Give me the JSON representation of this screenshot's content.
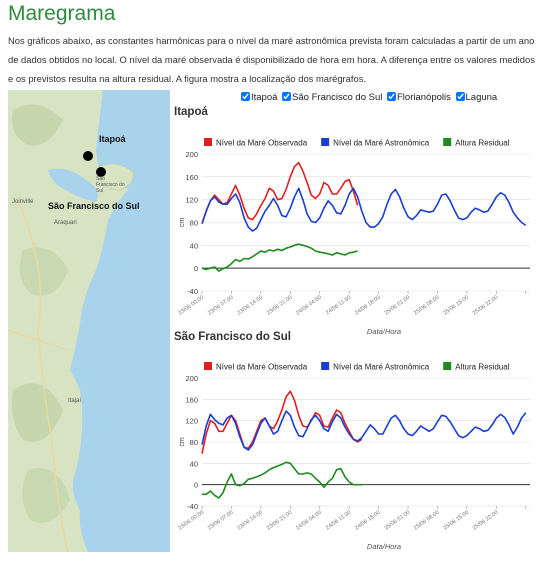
{
  "page": {
    "title": "Maregrama",
    "intro": "Nos gráficos abaixo, as constantes harmônicas para o nível da maré astronômica prevista foram calculadas a partir de um ano de dados obtidos no local. O nível da maré observada é disponibilizado de hora em hora. A diferença entre os valores medidos e os previstos resulta na altura residual. A figura mostra a localização dos marégrafos."
  },
  "map": {
    "labels": [
      "Itapoá",
      "São Francisco do Sul",
      "Joinville",
      "Araquari",
      "Itajaí",
      "São Francisco do Sul"
    ],
    "colors": {
      "land": "#d8e3c4",
      "water": "#a9d3ec",
      "marker": "#000000"
    }
  },
  "filters": {
    "options": [
      {
        "label": "Itapoá",
        "checked": true
      },
      {
        "label": "São Francisco do Sul",
        "checked": true
      },
      {
        "label": "Florianópolis",
        "checked": true
      },
      {
        "label": "Laguna",
        "checked": true
      }
    ]
  },
  "charts": [
    {
      "title": "Itapoá"
    },
    {
      "title": "São Francisco do Sul"
    }
  ],
  "chart_data": [
    {
      "type": "line",
      "title": "Itapoá",
      "xlabel": "Data/Hora",
      "ylabel": "cm",
      "ylim": [
        -40,
        200
      ],
      "yticks": [
        -40,
        0,
        40,
        80,
        120,
        160,
        200
      ],
      "xlim": [
        0,
        78
      ],
      "xticks": [
        0,
        7,
        14,
        21,
        28,
        35,
        42,
        49,
        56,
        63,
        70,
        77
      ],
      "xtick_labels": [
        "23/06 00:00",
        "23/06 07:00",
        "23/06 14:00",
        "23/06 21:00",
        "24/06 04:00",
        "24/06 11:00",
        "24/06 18:00",
        "25/06 01:00",
        "25/06 08:00",
        "25/06 15:00",
        "25/06 22:00",
        ""
      ],
      "legend_position": "top",
      "grid": true,
      "series": [
        {
          "name": "Nível da Maré Observada",
          "color": "#e02020",
          "x": [
            0,
            1,
            2,
            3,
            4,
            5,
            6,
            7,
            8,
            9,
            10,
            11,
            12,
            13,
            14,
            15,
            16,
            17,
            18,
            19,
            20,
            21,
            22,
            23,
            24,
            25,
            26,
            27,
            28,
            29,
            30,
            31,
            32,
            33,
            34,
            35,
            36,
            37
          ],
          "values": [
            78,
            100,
            118,
            128,
            120,
            112,
            115,
            130,
            145,
            128,
            105,
            88,
            85,
            95,
            110,
            122,
            140,
            135,
            120,
            122,
            138,
            160,
            178,
            185,
            170,
            150,
            128,
            122,
            130,
            150,
            145,
            130,
            130,
            140,
            152,
            155,
            135,
            110
          ]
        },
        {
          "name": "Nível da Maré Astronômica",
          "color": "#1a3fd0",
          "x": [
            0,
            1,
            2,
            3,
            4,
            5,
            6,
            7,
            8,
            9,
            10,
            11,
            12,
            13,
            14,
            15,
            16,
            17,
            18,
            19,
            20,
            21,
            22,
            23,
            24,
            25,
            26,
            27,
            28,
            29,
            30,
            31,
            32,
            33,
            34,
            35,
            36,
            37,
            38,
            39,
            40,
            41,
            42,
            43,
            44,
            45,
            46,
            47,
            48,
            49,
            50,
            51,
            52,
            53,
            54,
            55,
            56,
            57,
            58,
            59,
            60,
            61,
            62,
            63,
            64,
            65,
            66,
            67,
            68,
            69,
            70,
            71,
            72,
            73,
            74,
            75,
            76,
            77
          ],
          "values": [
            78,
            100,
            118,
            125,
            116,
            112,
            112,
            122,
            130,
            115,
            88,
            72,
            65,
            70,
            85,
            100,
            110,
            122,
            110,
            92,
            90,
            105,
            125,
            140,
            120,
            95,
            82,
            80,
            88,
            105,
            118,
            110,
            97,
            95,
            110,
            130,
            140,
            125,
            100,
            80,
            72,
            72,
            78,
            90,
            112,
            130,
            138,
            125,
            105,
            90,
            85,
            92,
            102,
            100,
            98,
            100,
            112,
            128,
            130,
            118,
            102,
            88,
            85,
            88,
            98,
            105,
            102,
            98,
            100,
            112,
            125,
            132,
            128,
            115,
            98,
            88,
            80,
            75
          ]
        },
        {
          "name": "Altura Residual",
          "color": "#1c8a1c",
          "x": [
            0,
            1,
            2,
            3,
            4,
            5,
            6,
            7,
            8,
            9,
            10,
            11,
            12,
            13,
            14,
            15,
            16,
            17,
            18,
            19,
            20,
            21,
            22,
            23,
            24,
            25,
            26,
            27,
            28,
            29,
            30,
            31,
            32,
            33,
            34,
            35,
            36,
            37
          ],
          "values": [
            0,
            -2,
            0,
            2,
            -5,
            -1,
            2,
            8,
            15,
            12,
            17,
            16,
            20,
            25,
            30,
            28,
            32,
            30,
            33,
            31,
            35,
            37,
            40,
            42,
            40,
            38,
            35,
            30,
            28,
            27,
            25,
            23,
            27,
            25,
            23,
            27,
            28,
            30
          ]
        }
      ]
    },
    {
      "type": "line",
      "title": "São Francisco do Sul",
      "xlabel": "Data/Hora",
      "ylabel": "cm",
      "ylim": [
        -40,
        200
      ],
      "yticks": [
        -40,
        0,
        40,
        80,
        120,
        160,
        200
      ],
      "xlim": [
        0,
        78
      ],
      "xticks": [
        0,
        7,
        14,
        21,
        28,
        35,
        42,
        49,
        56,
        63,
        70,
        77
      ],
      "xtick_labels": [
        "23/06 00:00",
        "23/06 07:00",
        "23/06 14:00",
        "23/06 21:00",
        "24/06 04:00",
        "24/06 11:00",
        "24/06 18:00",
        "25/06 01:00",
        "25/06 08:00",
        "25/06 15:00",
        "25/06 22:00",
        ""
      ],
      "legend_position": "top",
      "grid": true,
      "series": [
        {
          "name": "Nível da Maré Observada",
          "color": "#e02020",
          "x": [
            0,
            1,
            2,
            3,
            4,
            5,
            6,
            7,
            8,
            9,
            10,
            11,
            12,
            13,
            14,
            15,
            16,
            17,
            18,
            19,
            20,
            21,
            22,
            23,
            24,
            25,
            26,
            27,
            28,
            29,
            30,
            31,
            32,
            33,
            34,
            35,
            36,
            37,
            38
          ],
          "values": [
            58,
            95,
            120,
            115,
            100,
            100,
            115,
            130,
            120,
            95,
            70,
            68,
            80,
            100,
            120,
            125,
            110,
            105,
            120,
            140,
            165,
            175,
            158,
            130,
            110,
            108,
            120,
            135,
            130,
            110,
            108,
            125,
            140,
            135,
            115,
            100,
            85,
            80,
            85
          ]
        },
        {
          "name": "Nível da Maré Astronômica",
          "color": "#1a3fd0",
          "x": [
            0,
            1,
            2,
            3,
            4,
            5,
            6,
            7,
            8,
            9,
            10,
            11,
            12,
            13,
            14,
            15,
            16,
            17,
            18,
            19,
            20,
            21,
            22,
            23,
            24,
            25,
            26,
            27,
            28,
            29,
            30,
            31,
            32,
            33,
            34,
            35,
            36,
            37,
            38,
            39,
            40,
            41,
            42,
            43,
            44,
            45,
            46,
            47,
            48,
            49,
            50,
            51,
            52,
            53,
            54,
            55,
            56,
            57,
            58,
            59,
            60,
            61,
            62,
            63,
            64,
            65,
            66,
            67,
            68,
            69,
            70,
            71,
            72,
            73,
            74,
            75,
            76,
            77
          ],
          "values": [
            75,
            110,
            132,
            122,
            115,
            112,
            125,
            130,
            115,
            90,
            70,
            65,
            75,
            95,
            115,
            125,
            110,
            95,
            100,
            120,
            138,
            130,
            108,
            92,
            90,
            105,
            122,
            130,
            120,
            105,
            100,
            118,
            132,
            125,
            108,
            95,
            85,
            82,
            88,
            100,
            112,
            105,
            95,
            95,
            110,
            125,
            130,
            120,
            105,
            95,
            92,
            100,
            110,
            105,
            100,
            105,
            118,
            130,
            128,
            118,
            105,
            92,
            88,
            92,
            100,
            108,
            105,
            100,
            102,
            112,
            125,
            132,
            126,
            112,
            95,
            108,
            125,
            135
          ]
        },
        {
          "name": "Altura Residual",
          "color": "#1c8a1c",
          "x": [
            0,
            1,
            2,
            3,
            4,
            5,
            6,
            7,
            8,
            9,
            10,
            11,
            12,
            13,
            14,
            15,
            16,
            17,
            18,
            19,
            20,
            21,
            22,
            23,
            24,
            25,
            26,
            27,
            28,
            29,
            30,
            31,
            32,
            33,
            34,
            35,
            36,
            37,
            38
          ],
          "values": [
            -18,
            -18,
            -12,
            -20,
            -25,
            -15,
            5,
            20,
            0,
            -2,
            2,
            10,
            12,
            15,
            18,
            22,
            28,
            32,
            35,
            38,
            42,
            40,
            30,
            20,
            20,
            22,
            20,
            12,
            5,
            -5,
            5,
            12,
            28,
            30,
            15,
            5,
            0,
            0,
            0
          ]
        }
      ]
    }
  ]
}
